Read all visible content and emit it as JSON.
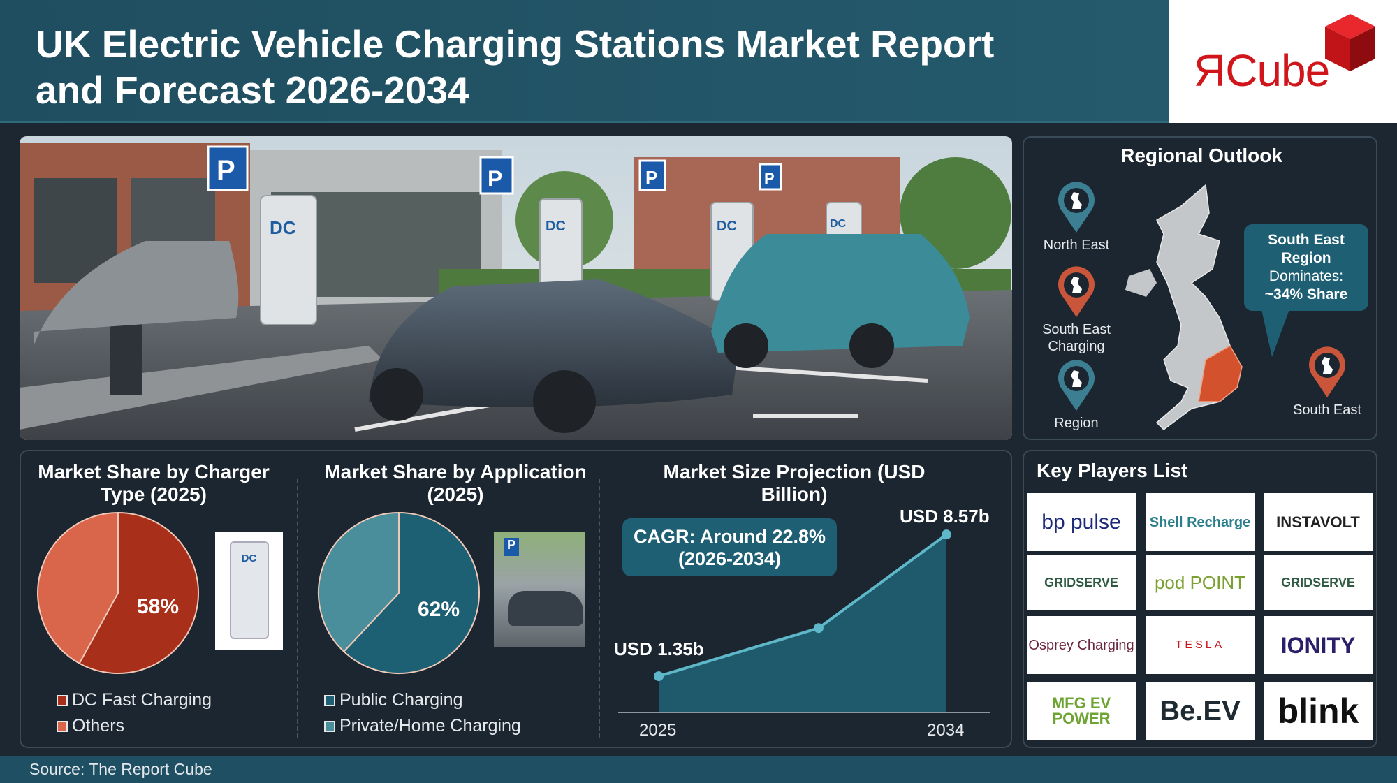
{
  "header": {
    "title_line1": "UK Electric Vehicle Charging Stations Market Report",
    "title_line2": "and Forecast 2026-2034"
  },
  "logo": {
    "text": "ЯCube",
    "color": "#d0161b"
  },
  "hero": {
    "sign_label": "P",
    "charger_label": "DC"
  },
  "regional": {
    "title": "Regional Outlook",
    "pins": [
      {
        "label": "North East",
        "color": "#3d7f92"
      },
      {
        "label": "South East Charging",
        "color": "#c9553a"
      },
      {
        "label": "Region",
        "color": "#3d7f92"
      },
      {
        "label": "South East",
        "color": "#c9553a"
      }
    ],
    "callout": {
      "line1": "South East",
      "line2": "Region",
      "line3": "Dominates:",
      "line4": "~34% Share"
    },
    "highlight_color": "#d4512e"
  },
  "chart_data": [
    {
      "type": "pie",
      "title": "Market Share by Charger Type (2025)",
      "slices": [
        {
          "name": "DC Fast Charging",
          "value": 58,
          "color": "#a8301a"
        },
        {
          "name": "Others",
          "value": 42,
          "color": "#d9654a"
        }
      ],
      "data_label": "58%",
      "image_label": "DC"
    },
    {
      "type": "pie",
      "title": "Market Share by Application (2025)",
      "slices": [
        {
          "name": "Public Charging",
          "value": 62,
          "color": "#1d5f73"
        },
        {
          "name": "Private/Home Charging",
          "value": 38,
          "color": "#4a8e9b"
        }
      ],
      "data_label": "62%",
      "image_label": "P"
    },
    {
      "type": "area",
      "title": "Market Size Projection (USD Billion)",
      "x": [
        2025,
        2030,
        2034
      ],
      "y": [
        1.35,
        3.8,
        8.57
      ],
      "xticks": [
        "2025",
        "2034"
      ],
      "labels": {
        "start": "USD 1.35b",
        "end": "USD 8.57b"
      },
      "annotation": {
        "line1": "CAGR: Around 22.8%",
        "line2": "(2026-2034)"
      },
      "color": "#5fb8c9",
      "fill": "#1f5a6c"
    }
  ],
  "players": {
    "title": "Key Players List",
    "items": [
      "bp pulse",
      "Shell Recharge",
      "INSTAVOLT",
      "GRIDSERVE",
      "pod POINT",
      "GRIDSERVE",
      "Osprey Charging",
      "TESLA",
      "IONITY",
      "MFG EV POWER",
      "Be.EV",
      "blink"
    ]
  },
  "footer": {
    "source": "Source: The Report Cube"
  }
}
